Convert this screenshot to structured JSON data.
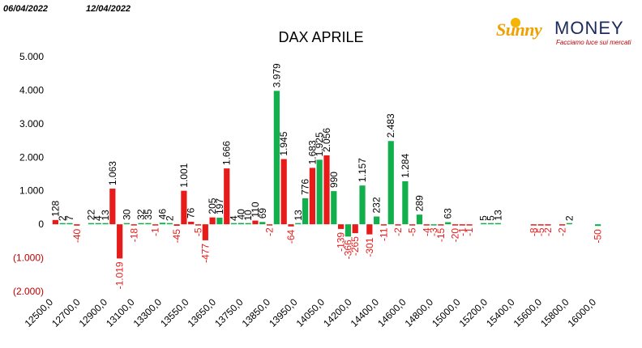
{
  "header": {
    "date_from": "06/04/2022",
    "date_to": "12/04/2022"
  },
  "logo": {
    "brand_a": "Sunny",
    "brand_b": "MONEY",
    "tagline": "Facciamo luce sui mercati"
  },
  "colors": {
    "positive": "#12b04c",
    "negative": "#e81b1b",
    "neg_label": "#e81b1b"
  },
  "chart_data": {
    "type": "bar",
    "title": "DAX APRILE",
    "ylim": [
      -2000,
      5000
    ],
    "yticks": [
      {
        "v": 5000,
        "t": "5.000"
      },
      {
        "v": 4000,
        "t": "4.000"
      },
      {
        "v": 3000,
        "t": "3.000"
      },
      {
        "v": 2000,
        "t": "2.000"
      },
      {
        "v": 1000,
        "t": "1.000"
      },
      {
        "v": 0,
        "t": "0"
      },
      {
        "v": -1000,
        "t": "(1.000)"
      },
      {
        "v": -2000,
        "t": "(2.000)"
      }
    ],
    "xtick_labels": [
      "12500,0",
      "12700,0",
      "12900,0",
      "13100,0",
      "13300,0",
      "13550,0",
      "13650,0",
      "13750,0",
      "13850,0",
      "13950,0",
      "14050,0",
      "14200,0",
      "14400,0",
      "14600,0",
      "14800,0",
      "15000,0",
      "15200,0",
      "15400,0",
      "15600,0",
      "15800,0",
      "16000,0"
    ],
    "bars": [
      {
        "value": 128,
        "color": "red",
        "label": "128"
      },
      {
        "value": 2,
        "color": "green",
        "label": "2"
      },
      {
        "value": 7,
        "color": "green",
        "label": "7"
      },
      {
        "value": -40,
        "color": "red",
        "label": "-40"
      },
      {
        "value": 0,
        "color": "green",
        "label": ""
      },
      {
        "value": 22,
        "color": "green",
        "label": "22"
      },
      {
        "value": 4,
        "color": "green",
        "label": "4"
      },
      {
        "value": 13,
        "color": "green",
        "label": "13"
      },
      {
        "value": 1063,
        "color": "red",
        "label": "1.063"
      },
      {
        "value": -1019,
        "color": "red",
        "label": "-1.019"
      },
      {
        "value": 30,
        "color": "green",
        "label": "30"
      },
      {
        "value": -18,
        "color": "red",
        "label": "-18"
      },
      {
        "value": 32,
        "color": "green",
        "label": "32"
      },
      {
        "value": 35,
        "color": "green",
        "label": "35"
      },
      {
        "value": -1,
        "color": "red",
        "label": "-1"
      },
      {
        "value": 46,
        "color": "green",
        "label": "46"
      },
      {
        "value": 2,
        "color": "green",
        "label": "2"
      },
      {
        "value": -45,
        "color": "red",
        "label": "-45"
      },
      {
        "value": 1001,
        "color": "red",
        "label": "1.001"
      },
      {
        "value": 76,
        "color": "red",
        "label": "76"
      },
      {
        "value": -5,
        "color": "red",
        "label": "-5"
      },
      {
        "value": -477,
        "color": "red",
        "label": "-477"
      },
      {
        "value": 205,
        "color": "red",
        "label": "205"
      },
      {
        "value": 197,
        "color": "green",
        "label": "197"
      },
      {
        "value": 1666,
        "color": "red",
        "label": "1.666"
      },
      {
        "value": 4,
        "color": "green",
        "label": "4"
      },
      {
        "value": 40,
        "color": "green",
        "label": "40"
      },
      {
        "value": 10,
        "color": "green",
        "label": "10"
      },
      {
        "value": 110,
        "color": "red",
        "label": "110"
      },
      {
        "value": 69,
        "color": "green",
        "label": "69"
      },
      {
        "value": -2,
        "color": "red",
        "label": "-2"
      },
      {
        "value": 3979,
        "color": "green",
        "label": "3.979"
      },
      {
        "value": 1945,
        "color": "red",
        "label": "1.945"
      },
      {
        "value": -64,
        "color": "red",
        "label": "-64"
      },
      {
        "value": 13,
        "color": "green",
        "label": "13"
      },
      {
        "value": 776,
        "color": "green",
        "label": "776"
      },
      {
        "value": 1683,
        "color": "red",
        "label": "1.683"
      },
      {
        "value": 1925,
        "color": "green",
        "label": "1.925"
      },
      {
        "value": 2056,
        "color": "red",
        "label": "2.056"
      },
      {
        "value": 990,
        "color": "green",
        "label": "990"
      },
      {
        "value": -139,
        "color": "red",
        "label": "-139"
      },
      {
        "value": -366,
        "color": "green",
        "label": "-366"
      },
      {
        "value": -265,
        "color": "red",
        "label": "-265"
      },
      {
        "value": 1157,
        "color": "green",
        "label": "1.157"
      },
      {
        "value": -301,
        "color": "red",
        "label": "-301"
      },
      {
        "value": 232,
        "color": "green",
        "label": "232"
      },
      {
        "value": -11,
        "color": "red",
        "label": "-11"
      },
      {
        "value": 2483,
        "color": "green",
        "label": "2.483"
      },
      {
        "value": -2,
        "color": "red",
        "label": "-2"
      },
      {
        "value": 1284,
        "color": "green",
        "label": "1.284"
      },
      {
        "value": -5,
        "color": "red",
        "label": "-5"
      },
      {
        "value": 289,
        "color": "green",
        "label": "289"
      },
      {
        "value": -4,
        "color": "red",
        "label": "-4"
      },
      {
        "value": -3,
        "color": "green",
        "label": "-3"
      },
      {
        "value": -15,
        "color": "red",
        "label": "-15"
      },
      {
        "value": 63,
        "color": "green",
        "label": "63"
      },
      {
        "value": -20,
        "color": "red",
        "label": "-20"
      },
      {
        "value": -1,
        "color": "red",
        "label": "-1"
      },
      {
        "value": -1,
        "color": "red",
        "label": "-1"
      },
      {
        "value": 0,
        "color": "green",
        "label": ""
      },
      {
        "value": 5,
        "color": "green",
        "label": "5"
      },
      {
        "value": 5,
        "color": "green",
        "label": "5"
      },
      {
        "value": 13,
        "color": "green",
        "label": "13"
      },
      {
        "value": 0,
        "color": "green",
        "label": ""
      },
      {
        "value": 0,
        "color": "green",
        "label": ""
      },
      {
        "value": 0,
        "color": "green",
        "label": ""
      },
      {
        "value": 0,
        "color": "green",
        "label": ""
      },
      {
        "value": -8,
        "color": "red",
        "label": "-8"
      },
      {
        "value": -5,
        "color": "red",
        "label": "-5"
      },
      {
        "value": -2,
        "color": "red",
        "label": "-2"
      },
      {
        "value": 0,
        "color": "green",
        "label": ""
      },
      {
        "value": -2,
        "color": "red",
        "label": "-2"
      },
      {
        "value": 2,
        "color": "green",
        "label": "2"
      },
      {
        "value": 0,
        "color": "green",
        "label": ""
      },
      {
        "value": 0,
        "color": "green",
        "label": ""
      },
      {
        "value": 0,
        "color": "green",
        "label": ""
      },
      {
        "value": -50,
        "color": "green",
        "label": "-50"
      }
    ]
  }
}
